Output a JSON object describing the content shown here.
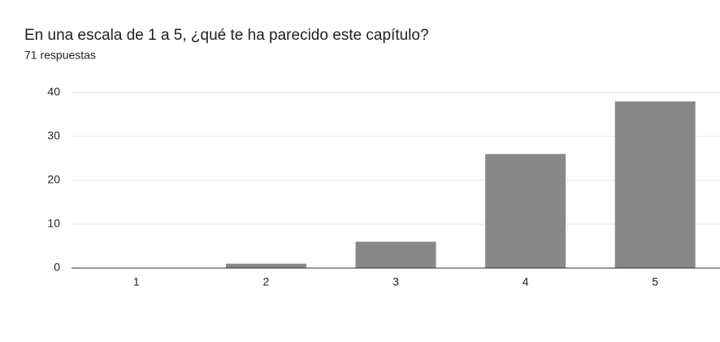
{
  "chart_data": {
    "type": "bar",
    "title": "En una escala de 1 a 5, ¿qué te ha parecido este capítulo?",
    "subtitle": "71 respuestas",
    "categories": [
      "1",
      "2",
      "3",
      "4",
      "5"
    ],
    "values": [
      0,
      1,
      6,
      26,
      38
    ],
    "color": "#888888",
    "ylim": [
      0,
      40
    ],
    "yticks": [
      0,
      10,
      20,
      30,
      40
    ],
    "grid": true
  }
}
